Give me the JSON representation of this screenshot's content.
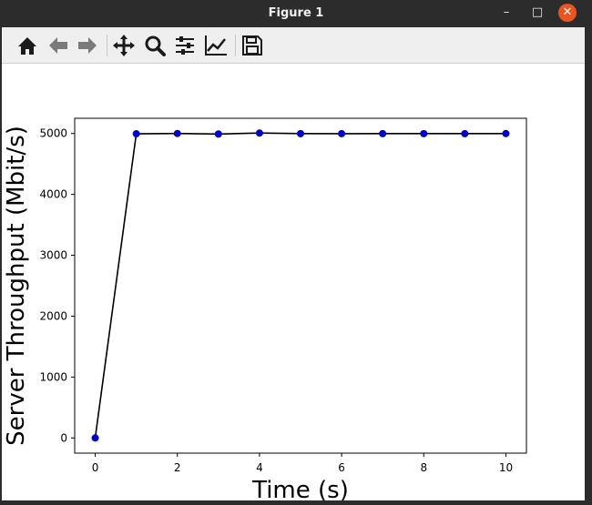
{
  "window": {
    "title": "Figure 1",
    "minimize_glyph": "–",
    "maximize_glyph": "□",
    "close_glyph": "✕"
  },
  "toolbar": {
    "buttons": [
      {
        "icon": "home-icon"
      },
      {
        "icon": "back-arrow-icon"
      },
      {
        "icon": "forward-arrow-icon"
      },
      {
        "icon": "pan-icon"
      },
      {
        "icon": "zoom-icon"
      },
      {
        "icon": "subplots-icon"
      },
      {
        "icon": "edit-axes-icon"
      },
      {
        "icon": "save-icon"
      }
    ]
  },
  "colors": {
    "line": "#000000",
    "marker": "#0000cc",
    "close_button": "#e95420"
  },
  "chart_data": {
    "type": "line",
    "title": "",
    "xlabel": "Time (s)",
    "ylabel": "Server Throughput (Mbit/s)",
    "xlim": [
      -0.5,
      10.5
    ],
    "ylim": [
      -250,
      5250
    ],
    "xticks": [
      0,
      2,
      4,
      6,
      8,
      10
    ],
    "yticks": [
      0,
      1000,
      2000,
      3000,
      4000,
      5000
    ],
    "grid": false,
    "legend": "none",
    "series": [
      {
        "x": [
          0,
          1,
          2,
          3,
          4,
          5,
          6,
          7,
          8,
          9,
          10
        ],
        "y": [
          0,
          4995,
          5000,
          4992,
          5008,
          4998,
          4997,
          4998,
          4998,
          4998,
          4999
        ]
      }
    ]
  }
}
